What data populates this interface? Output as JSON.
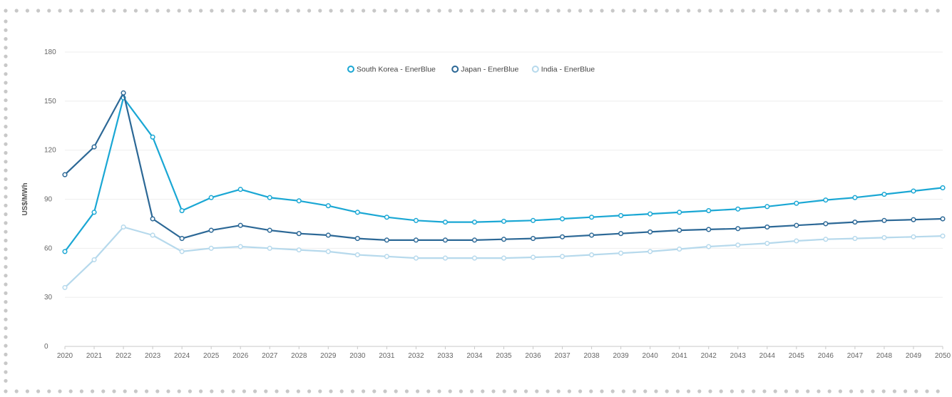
{
  "chart_data": {
    "type": "line",
    "title": "",
    "xlabel": "",
    "ylabel": "US$/MWh",
    "ylim": [
      0,
      180
    ],
    "yticks": [
      0,
      30,
      60,
      90,
      120,
      150,
      180
    ],
    "grid": "horizontal",
    "legend_position": "top-center",
    "x": [
      2020,
      2021,
      2022,
      2023,
      2024,
      2025,
      2026,
      2027,
      2028,
      2029,
      2030,
      2031,
      2032,
      2033,
      2034,
      2035,
      2036,
      2037,
      2038,
      2039,
      2040,
      2041,
      2042,
      2043,
      2044,
      2045,
      2046,
      2047,
      2048,
      2049,
      2050
    ],
    "series": [
      {
        "name": "South Korea - EnerBlue",
        "color": "#1aa7d4",
        "values": [
          58,
          82,
          152,
          128,
          83,
          91,
          96,
          91,
          89,
          86,
          82,
          79,
          77,
          76,
          76,
          76.5,
          77,
          78,
          79,
          80,
          81,
          82,
          83,
          84,
          85.5,
          87.5,
          89.5,
          91,
          93,
          95,
          97
        ]
      },
      {
        "name": "Japan - EnerBlue",
        "color": "#2c6896",
        "values": [
          105,
          122,
          155,
          78,
          66,
          71,
          74,
          71,
          69,
          68,
          66,
          65,
          65,
          65,
          65,
          65.5,
          66,
          67,
          68,
          69,
          70,
          71,
          71.5,
          72,
          73,
          74,
          75,
          76,
          77,
          77.5,
          78
        ]
      },
      {
        "name": "India - EnerBlue",
        "color": "#b6d9ec",
        "values": [
          36,
          53,
          73,
          68,
          58,
          60,
          61,
          60,
          59,
          58,
          56,
          55,
          54,
          54,
          54,
          54,
          54.5,
          55,
          56,
          57,
          58,
          59.5,
          61,
          62,
          63,
          64.5,
          65.5,
          66,
          66.5,
          67,
          67.5
        ]
      }
    ]
  },
  "frame": {
    "border_color": "#c8c8c8",
    "grid_color": "#eeeeee",
    "axis_color": "#c8c8c8"
  }
}
